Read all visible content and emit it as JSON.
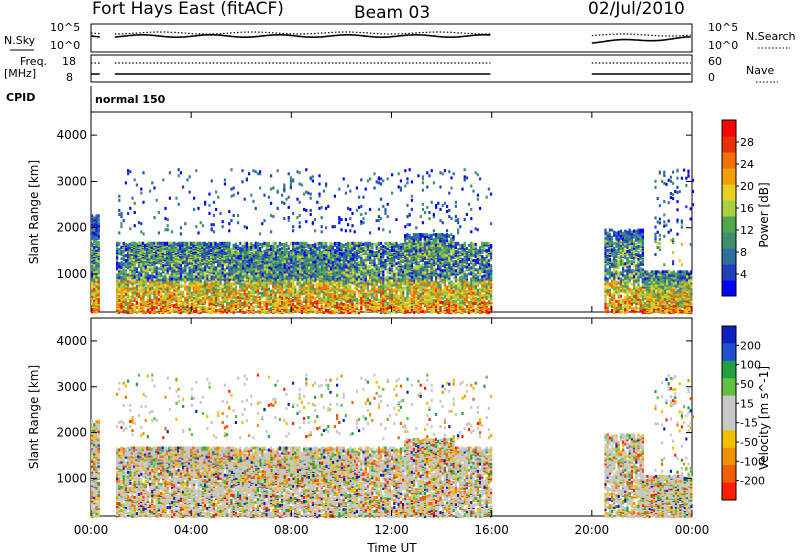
{
  "header": {
    "title": "Fort Hays East (fitACF)",
    "beam": "Beam 03",
    "date": "02/Jul/2010"
  },
  "top_panels": {
    "nsky_label": "N.Sky",
    "nsearch_label": "N.Search",
    "nsky_top": "10^5",
    "nsky_bottom": "10^0",
    "nsearch_top": "10^5",
    "nsearch_bottom": "10^0",
    "freq_label": "Freq.",
    "freq_unit": "[MHz]",
    "freq_top": "18",
    "freq_bottom": "8",
    "nave_label": "Nave",
    "nave_top": "60",
    "nave_bottom": "0",
    "cpid_label": "CPID",
    "cpid_value": "normal 150"
  },
  "chart_data": [
    {
      "type": "heatmap",
      "name": "power",
      "ylabel": "Slant Range [km]",
      "xlabel": "",
      "ylim": [
        180,
        4500
      ],
      "yticks": [
        "1000",
        "2000",
        "3000",
        "4000"
      ],
      "ytick_values": [
        1000,
        2000,
        3000,
        4000
      ],
      "xlim_hours": [
        0,
        24
      ],
      "colorbar": {
        "label": "Power [dB]",
        "ticks": [
          "4",
          "8",
          "12",
          "16",
          "20",
          "24",
          "28"
        ],
        "colors": [
          "#0000ff",
          "#1f3fbf",
          "#2f6f9f",
          "#3f8f6f",
          "#4fa84f",
          "#a8d040",
          "#e8d020",
          "#f0a000",
          "#f07000",
          "#e83000",
          "#ff0000"
        ]
      },
      "scatter_regions": [
        {
          "t0": 0.0,
          "t1": 0.35,
          "r0": 200,
          "r1": 2300,
          "density": 0.7
        },
        {
          "t0": 1.0,
          "t1": 16.0,
          "r0": 200,
          "r1": 1700,
          "density": 0.55
        },
        {
          "t0": 1.5,
          "t1": 5.5,
          "r0": 1300,
          "r1": 1700,
          "density": 0.8
        },
        {
          "t0": 5.5,
          "t1": 10.5,
          "r0": 900,
          "r1": 1500,
          "density": 0.55
        },
        {
          "t0": 12.5,
          "t1": 14.5,
          "r0": 1400,
          "r1": 1900,
          "density": 0.6
        },
        {
          "t0": 1.0,
          "t1": 16.0,
          "r0": 1900,
          "r1": 3300,
          "density": 0.03
        },
        {
          "t0": 20.5,
          "t1": 22.0,
          "r0": 200,
          "r1": 2000,
          "density": 0.45
        },
        {
          "t0": 22.0,
          "t1": 24.0,
          "r0": 200,
          "r1": 1100,
          "density": 0.75
        },
        {
          "t0": 22.5,
          "t1": 24.0,
          "r0": 1100,
          "r1": 3300,
          "density": 0.04
        }
      ]
    },
    {
      "type": "heatmap",
      "name": "velocity",
      "ylabel": "Slant Range [km]",
      "xlabel": "Time UT",
      "ylim": [
        180,
        4500
      ],
      "yticks": [
        "1000",
        "2000",
        "3000",
        "4000"
      ],
      "ytick_values": [
        1000,
        2000,
        3000,
        4000
      ],
      "xticks": [
        "00:00",
        "04:00",
        "08:00",
        "12:00",
        "16:00",
        "20:00",
        "00:00"
      ],
      "xtick_hours": [
        0,
        4,
        8,
        12,
        16,
        20,
        24
      ],
      "xlim_hours": [
        0,
        24
      ],
      "colorbar": {
        "label": "Velocity [m s^-1]",
        "ticks": [
          "200",
          "100",
          "50",
          "15",
          "-15",
          "-50",
          "-100",
          "-200"
        ],
        "colors": [
          "#1020c0",
          "#2050d0",
          "#20a040",
          "#60c040",
          "#c8c8c8",
          "#c8c8c8",
          "#f0c000",
          "#f09000",
          "#f06000",
          "#ff2000"
        ]
      },
      "scatter_regions": [
        {
          "t0": 0.0,
          "t1": 0.35,
          "r0": 200,
          "r1": 2300,
          "density": 0.7
        },
        {
          "t0": 1.0,
          "t1": 16.0,
          "r0": 200,
          "r1": 1700,
          "density": 0.55
        },
        {
          "t0": 1.5,
          "t1": 5.5,
          "r0": 1300,
          "r1": 1700,
          "density": 0.8
        },
        {
          "t0": 5.5,
          "t1": 10.5,
          "r0": 900,
          "r1": 1500,
          "density": 0.55
        },
        {
          "t0": 12.5,
          "t1": 14.5,
          "r0": 1400,
          "r1": 1900,
          "density": 0.6
        },
        {
          "t0": 1.0,
          "t1": 16.0,
          "r0": 1900,
          "r1": 3300,
          "density": 0.03
        },
        {
          "t0": 20.5,
          "t1": 22.0,
          "r0": 200,
          "r1": 2000,
          "density": 0.45
        },
        {
          "t0": 22.0,
          "t1": 24.0,
          "r0": 200,
          "r1": 1100,
          "density": 0.75
        },
        {
          "t0": 22.5,
          "t1": 24.0,
          "r0": 1100,
          "r1": 3300,
          "density": 0.04
        }
      ]
    }
  ],
  "operation_gaps_hours": [
    [
      0.35,
      0.95
    ],
    [
      16.0,
      20.0
    ]
  ]
}
